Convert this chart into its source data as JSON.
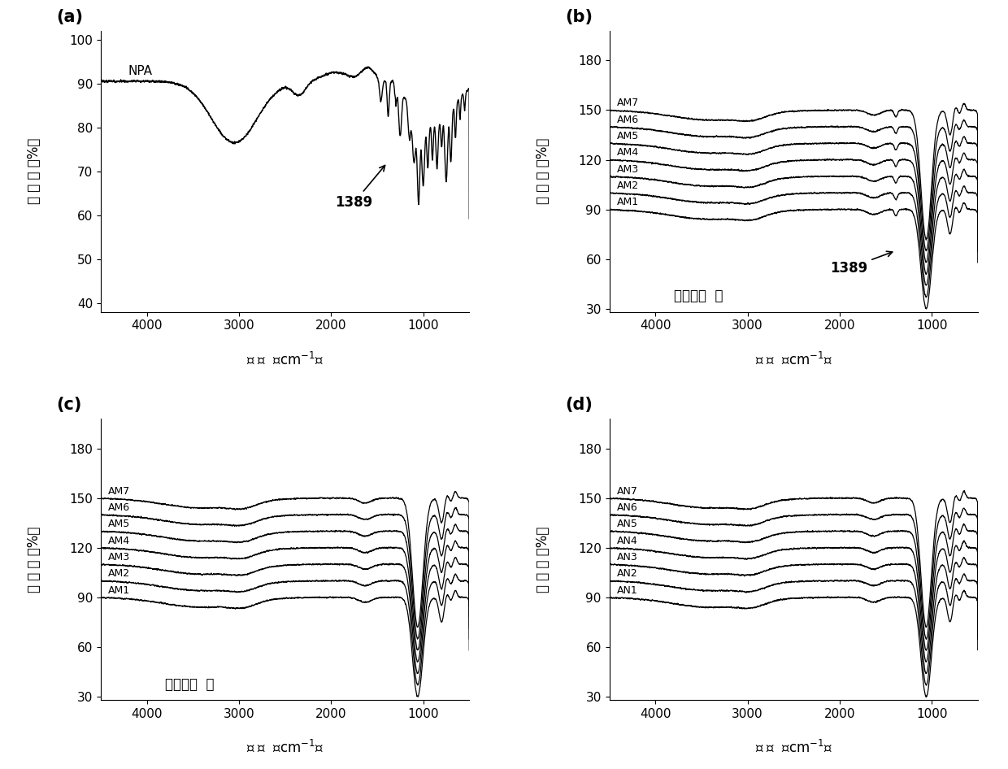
{
  "panel_labels": [
    "(a)",
    "(b)",
    "(c)",
    "(d)"
  ],
  "xlabel_parts": [
    "波 数 （cm",
    "-1",
    "）"
  ],
  "ylabel_parts": [
    "透 过 率 （%）"
  ],
  "panel_a": {
    "label": "NPA",
    "annotation": "1389",
    "ylim": [
      38,
      102
    ],
    "yticks": [
      40,
      50,
      60,
      70,
      80,
      90,
      100
    ]
  },
  "panel_b": {
    "labels": [
      "AM1",
      "AM2",
      "AM3",
      "AM4",
      "AM5",
      "AM6",
      "AM7"
    ],
    "annotation": "1389",
    "subtitle": "去除模板 前",
    "ylim": [
      28,
      198
    ],
    "yticks": [
      30,
      60,
      90,
      120,
      150,
      180
    ]
  },
  "panel_c": {
    "labels": [
      "AM1",
      "AM2",
      "AM3",
      "AM4",
      "AM5",
      "AM6",
      "AM7"
    ],
    "subtitle": "去除模板 后",
    "ylim": [
      28,
      198
    ],
    "yticks": [
      30,
      60,
      90,
      120,
      150,
      180
    ]
  },
  "panel_d": {
    "labels": [
      "AN1",
      "AN2",
      "AN3",
      "AN4",
      "AN5",
      "AN6",
      "AN7"
    ],
    "ylim": [
      28,
      198
    ],
    "yticks": [
      30,
      60,
      90,
      120,
      150,
      180
    ]
  },
  "xticks": [
    1000,
    2000,
    3000,
    4000
  ],
  "xticklabels": [
    "1000",
    "2000",
    "3000",
    "4000"
  ],
  "line_color": "#000000",
  "bg_color": "#ffffff"
}
